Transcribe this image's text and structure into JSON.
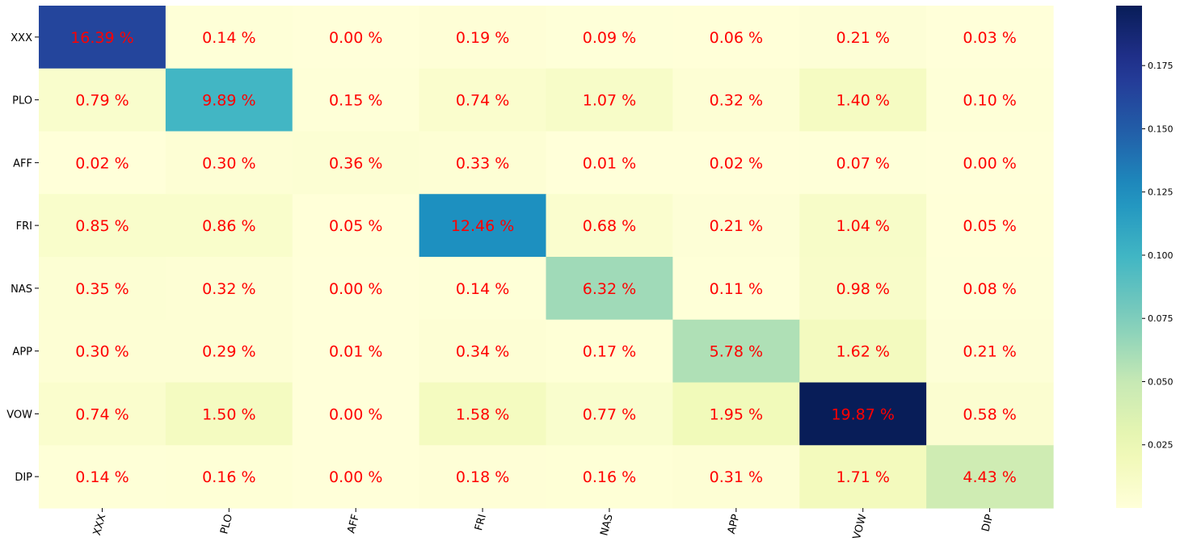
{
  "chart_data": {
    "type": "heatmap",
    "title": "",
    "xlabel": "",
    "ylabel": "",
    "x_categories": [
      "XXX",
      "PLO",
      "AFF",
      "FRI",
      "NAS",
      "APP",
      "VOW",
      "DIP"
    ],
    "y_categories": [
      "XXX",
      "PLO",
      "AFF",
      "FRI",
      "NAS",
      "APP",
      "VOW",
      "DIP"
    ],
    "values": [
      [
        0.1639,
        0.0014,
        0.0,
        0.0019,
        0.0009,
        0.0006,
        0.0021,
        0.0003
      ],
      [
        0.0079,
        0.0989,
        0.0015,
        0.0074,
        0.0107,
        0.0032,
        0.014,
        0.001
      ],
      [
        0.0002,
        0.003,
        0.0036,
        0.0033,
        0.0001,
        0.0002,
        0.0007,
        0.0
      ],
      [
        0.0085,
        0.0086,
        0.0005,
        0.1246,
        0.0068,
        0.0021,
        0.0104,
        0.0005
      ],
      [
        0.0035,
        0.0032,
        0.0,
        0.0014,
        0.0632,
        0.0011,
        0.0098,
        0.0008
      ],
      [
        0.003,
        0.0029,
        0.0001,
        0.0034,
        0.0017,
        0.0578,
        0.0162,
        0.0021
      ],
      [
        0.0074,
        0.015,
        0.0,
        0.0158,
        0.0077,
        0.0195,
        0.1987,
        0.0058
      ],
      [
        0.0014,
        0.0016,
        0.0,
        0.0018,
        0.0016,
        0.0031,
        0.0171,
        0.0443
      ]
    ],
    "cell_labels": [
      [
        "16.39 %",
        "0.14 %",
        "0.00 %",
        "0.19 %",
        "0.09 %",
        "0.06 %",
        "0.21 %",
        "0.03 %"
      ],
      [
        "0.79 %",
        "9.89 %",
        "0.15 %",
        "0.74 %",
        "1.07 %",
        "0.32 %",
        "1.40 %",
        "0.10 %"
      ],
      [
        "0.02 %",
        "0.30 %",
        "0.36 %",
        "0.33 %",
        "0.01 %",
        "0.02 %",
        "0.07 %",
        "0.00 %"
      ],
      [
        "0.85 %",
        "0.86 %",
        "0.05 %",
        "12.46 %",
        "0.68 %",
        "0.21 %",
        "1.04 %",
        "0.05 %"
      ],
      [
        "0.35 %",
        "0.32 %",
        "0.00 %",
        "0.14 %",
        "6.32 %",
        "0.11 %",
        "0.98 %",
        "0.08 %"
      ],
      [
        "0.30 %",
        "0.29 %",
        "0.01 %",
        "0.34 %",
        "0.17 %",
        "5.78 %",
        "1.62 %",
        "0.21 %"
      ],
      [
        "0.74 %",
        "1.50 %",
        "0.00 %",
        "1.58 %",
        "0.77 %",
        "1.95 %",
        "19.87 %",
        "0.58 %"
      ],
      [
        "0.14 %",
        "0.16 %",
        "0.00 %",
        "0.18 %",
        "0.16 %",
        "0.31 %",
        "1.71 %",
        "4.43 %"
      ]
    ],
    "colormap": "YlGnBu",
    "color_range": [
      0.0,
      0.1987
    ],
    "colorbar_ticks": [
      0.025,
      0.05,
      0.075,
      0.1,
      0.125,
      0.15,
      0.175
    ],
    "colorbar_tick_labels": [
      "0.025",
      "0.050",
      "0.075",
      "0.100",
      "0.125",
      "0.150",
      "0.175"
    ],
    "colorbar_placement": "right",
    "xtick_rotation_deg": 75,
    "annotation_color": "#ff0000",
    "grid": false
  }
}
